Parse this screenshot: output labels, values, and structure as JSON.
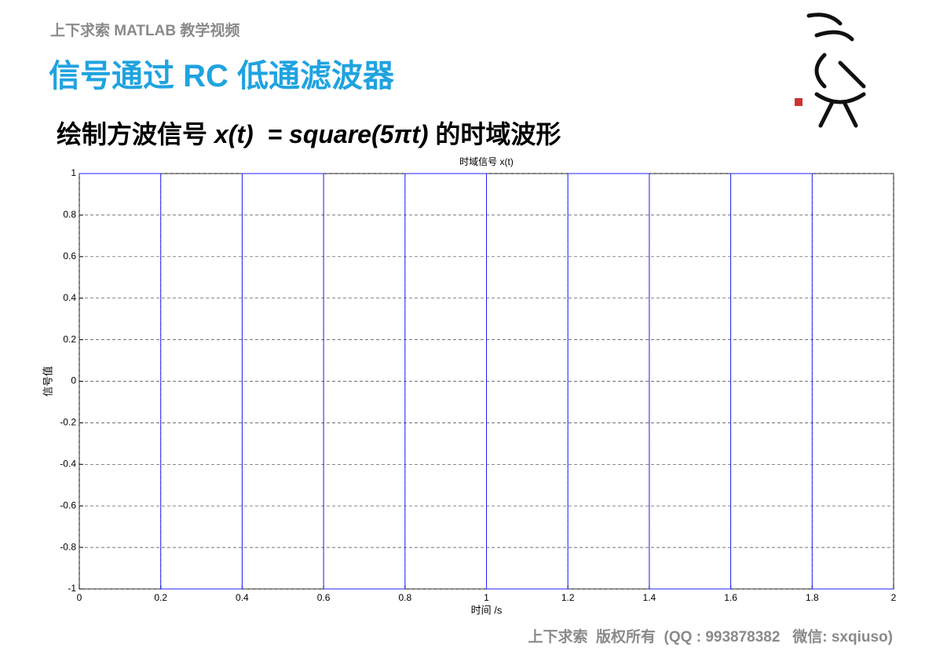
{
  "header": "上下求索 MATLAB 教学视频",
  "title": "信号通过 RC 低通滤波器",
  "subtitle": [
    "绘制方波信号 ",
    "x(t)",
    "  = square(5πt) ",
    "的时域波形"
  ],
  "footer": "上下求索  版权所有  (QQ : 993878382   微信: sxqiuso)",
  "chart_data": {
    "type": "line",
    "title": "时域信号 x(t)",
    "x_label": "时间 /s",
    "y_label": "信号值",
    "x": [
      0,
      0.2,
      0.2,
      0.4,
      0.4,
      0.6,
      0.6,
      0.8,
      0.8,
      1,
      1,
      1.2,
      1.2,
      1.4,
      1.4,
      1.6,
      1.6,
      1.8,
      1.8,
      2
    ],
    "series": [
      {
        "color": "#2020ff",
        "values": [
          1,
          1,
          -1,
          -1,
          1,
          1,
          -1,
          -1,
          1,
          1,
          -1,
          -1,
          1,
          1,
          -1,
          -1,
          1,
          1,
          -1,
          -1
        ]
      }
    ],
    "xlim": [
      0,
      2
    ],
    "xticks": [
      0,
      0.2,
      0.4,
      0.6,
      0.8,
      1,
      1.2,
      1.4,
      1.6,
      1.8,
      2
    ],
    "ylim": [
      -1,
      1
    ],
    "yticks": [
      -1,
      -0.8,
      -0.6,
      -0.4,
      -0.2,
      0,
      0.2,
      0.4,
      0.6,
      0.8,
      1
    ],
    "grid": true
  }
}
